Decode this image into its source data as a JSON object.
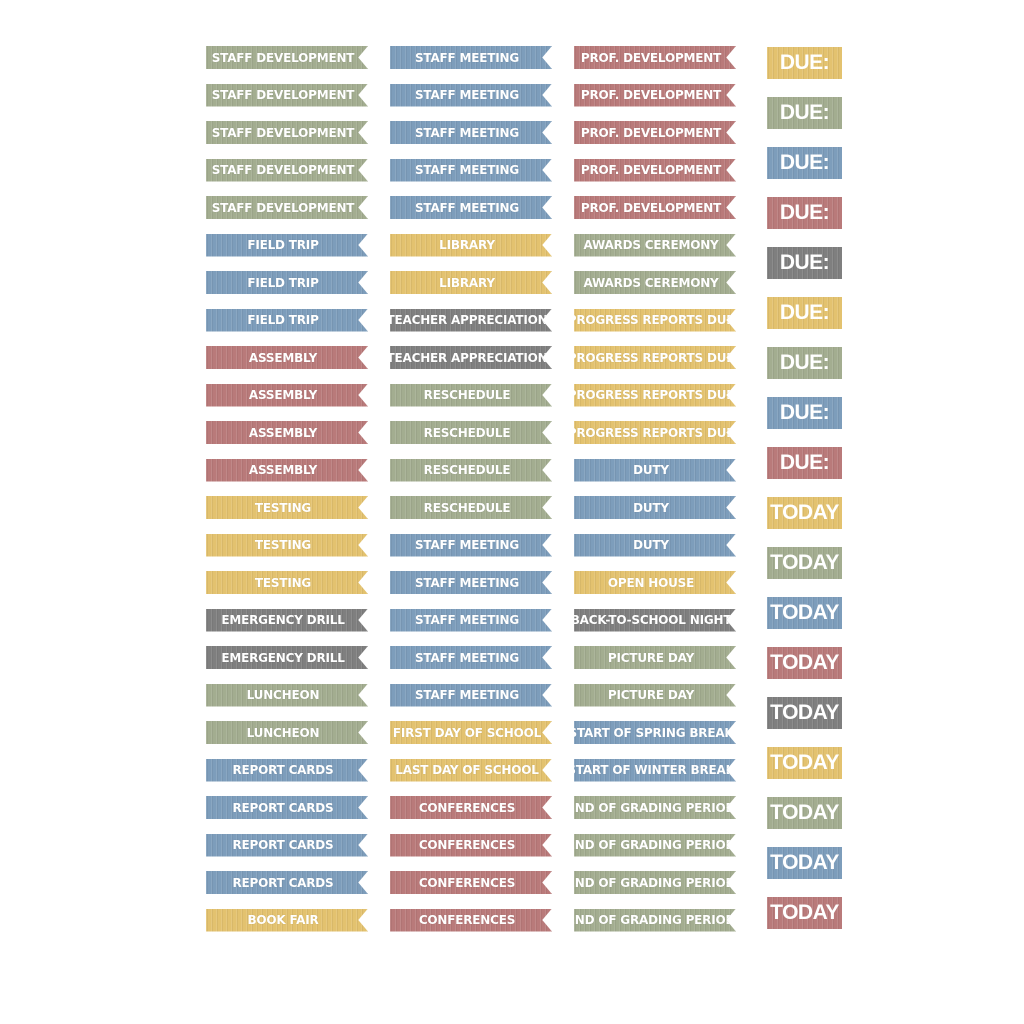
{
  "palette": {
    "green": "#a3ad90",
    "blue": "#7d9dbb",
    "rose": "#b97a7a",
    "gold": "#e3c26f",
    "grey": "#7f7f7f"
  },
  "columns": [
    {
      "items": [
        {
          "label": "STAFF DEVELOPMENT",
          "color": "green"
        },
        {
          "label": "STAFF DEVELOPMENT",
          "color": "green"
        },
        {
          "label": "STAFF DEVELOPMENT",
          "color": "green"
        },
        {
          "label": "STAFF DEVELOPMENT",
          "color": "green"
        },
        {
          "label": "STAFF DEVELOPMENT",
          "color": "green"
        },
        {
          "label": "FIELD TRIP",
          "color": "blue"
        },
        {
          "label": "FIELD TRIP",
          "color": "blue"
        },
        {
          "label": "FIELD TRIP",
          "color": "blue"
        },
        {
          "label": "ASSEMBLY",
          "color": "rose"
        },
        {
          "label": "ASSEMBLY",
          "color": "rose"
        },
        {
          "label": "ASSEMBLY",
          "color": "rose"
        },
        {
          "label": "ASSEMBLY",
          "color": "rose"
        },
        {
          "label": "TESTING",
          "color": "gold"
        },
        {
          "label": "TESTING",
          "color": "gold"
        },
        {
          "label": "TESTING",
          "color": "gold"
        },
        {
          "label": "EMERGENCY DRILL",
          "color": "grey"
        },
        {
          "label": "EMERGENCY DRILL",
          "color": "grey"
        },
        {
          "label": "LUNCHEON",
          "color": "green"
        },
        {
          "label": "LUNCHEON",
          "color": "green"
        },
        {
          "label": "REPORT CARDS",
          "color": "blue"
        },
        {
          "label": "REPORT CARDS",
          "color": "blue"
        },
        {
          "label": "REPORT CARDS",
          "color": "blue"
        },
        {
          "label": "REPORT CARDS",
          "color": "blue"
        },
        {
          "label": "BOOK FAIR",
          "color": "gold"
        }
      ]
    },
    {
      "items": [
        {
          "label": "STAFF MEETING",
          "color": "blue"
        },
        {
          "label": "STAFF MEETING",
          "color": "blue"
        },
        {
          "label": "STAFF MEETING",
          "color": "blue"
        },
        {
          "label": "STAFF MEETING",
          "color": "blue"
        },
        {
          "label": "STAFF MEETING",
          "color": "blue"
        },
        {
          "label": "LIBRARY",
          "color": "gold"
        },
        {
          "label": "LIBRARY",
          "color": "gold"
        },
        {
          "label": "TEACHER APPRECIATION",
          "color": "grey"
        },
        {
          "label": "TEACHER APPRECIATION",
          "color": "grey"
        },
        {
          "label": "RESCHEDULE",
          "color": "green"
        },
        {
          "label": "RESCHEDULE",
          "color": "green"
        },
        {
          "label": "RESCHEDULE",
          "color": "green"
        },
        {
          "label": "RESCHEDULE",
          "color": "green"
        },
        {
          "label": "STAFF MEETING",
          "color": "blue"
        },
        {
          "label": "STAFF MEETING",
          "color": "blue"
        },
        {
          "label": "STAFF MEETING",
          "color": "blue"
        },
        {
          "label": "STAFF MEETING",
          "color": "blue"
        },
        {
          "label": "STAFF MEETING",
          "color": "blue"
        },
        {
          "label": "FIRST DAY OF SCHOOL",
          "color": "gold"
        },
        {
          "label": "LAST DAY OF SCHOOL",
          "color": "gold"
        },
        {
          "label": "CONFERENCES",
          "color": "rose"
        },
        {
          "label": "CONFERENCES",
          "color": "rose"
        },
        {
          "label": "CONFERENCES",
          "color": "rose"
        },
        {
          "label": "CONFERENCES",
          "color": "rose"
        }
      ]
    },
    {
      "items": [
        {
          "label": "PROF. DEVELOPMENT",
          "color": "rose"
        },
        {
          "label": "PROF. DEVELOPMENT",
          "color": "rose"
        },
        {
          "label": "PROF. DEVELOPMENT",
          "color": "rose"
        },
        {
          "label": "PROF. DEVELOPMENT",
          "color": "rose"
        },
        {
          "label": "PROF. DEVELOPMENT",
          "color": "rose"
        },
        {
          "label": "AWARDS CEREMONY",
          "color": "green"
        },
        {
          "label": "AWARDS CEREMONY",
          "color": "green"
        },
        {
          "label": "PROGRESS REPORTS DUE",
          "color": "gold"
        },
        {
          "label": "PROGRESS REPORTS DUE",
          "color": "gold"
        },
        {
          "label": "PROGRESS REPORTS DUE",
          "color": "gold"
        },
        {
          "label": "PROGRESS REPORTS DUE",
          "color": "gold"
        },
        {
          "label": "DUTY",
          "color": "blue"
        },
        {
          "label": "DUTY",
          "color": "blue"
        },
        {
          "label": "DUTY",
          "color": "blue"
        },
        {
          "label": "OPEN HOUSE",
          "color": "gold"
        },
        {
          "label": "BACK-TO-SCHOOL NIGHT",
          "color": "grey"
        },
        {
          "label": "PICTURE DAY",
          "color": "green"
        },
        {
          "label": "PICTURE DAY",
          "color": "green"
        },
        {
          "label": "START OF SPRING BREAK",
          "color": "blue"
        },
        {
          "label": "START OF WINTER BREAK",
          "color": "blue"
        },
        {
          "label": "END OF GRADING PERIOD",
          "color": "green"
        },
        {
          "label": "END OF GRADING PERIOD",
          "color": "green"
        },
        {
          "label": "END OF GRADING PERIOD",
          "color": "green"
        },
        {
          "label": "END OF GRADING PERIOD",
          "color": "green"
        }
      ]
    }
  ],
  "tags": [
    {
      "label": "DUE:",
      "color": "gold"
    },
    {
      "label": "DUE:",
      "color": "green"
    },
    {
      "label": "DUE:",
      "color": "blue"
    },
    {
      "label": "DUE:",
      "color": "rose"
    },
    {
      "label": "DUE:",
      "color": "grey"
    },
    {
      "label": "DUE:",
      "color": "gold"
    },
    {
      "label": "DUE:",
      "color": "green"
    },
    {
      "label": "DUE:",
      "color": "blue"
    },
    {
      "label": "DUE:",
      "color": "rose"
    },
    {
      "label": "TODAY",
      "color": "gold"
    },
    {
      "label": "TODAY",
      "color": "green"
    },
    {
      "label": "TODAY",
      "color": "blue"
    },
    {
      "label": "TODAY",
      "color": "rose"
    },
    {
      "label": "TODAY",
      "color": "grey"
    },
    {
      "label": "TODAY",
      "color": "gold"
    },
    {
      "label": "TODAY",
      "color": "green"
    },
    {
      "label": "TODAY",
      "color": "blue"
    },
    {
      "label": "TODAY",
      "color": "rose"
    }
  ]
}
